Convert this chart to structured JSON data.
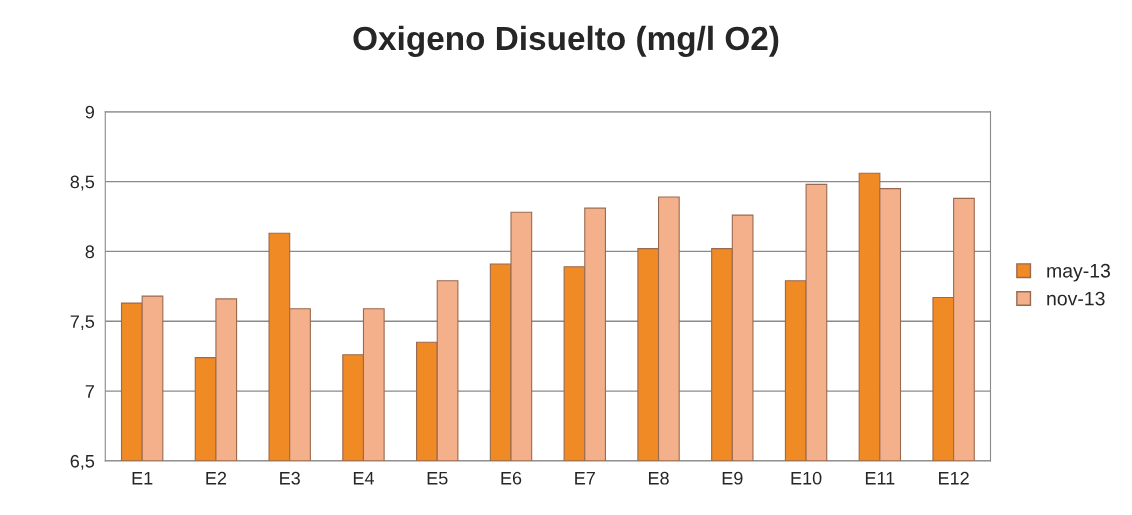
{
  "chart_data": {
    "type": "bar",
    "title": "Oxigeno Disuelto (mg/l O2)",
    "categories": [
      "E1",
      "E2",
      "E3",
      "E4",
      "E5",
      "E6",
      "E7",
      "E8",
      "E9",
      "E10",
      "E11",
      "E12"
    ],
    "series": [
      {
        "name": "may-13",
        "color": "#f08a24",
        "values": [
          7.63,
          7.24,
          8.13,
          7.26,
          7.35,
          7.91,
          7.89,
          8.02,
          8.02,
          7.79,
          8.56,
          7.67
        ]
      },
      {
        "name": "nov-13",
        "color": "#f4b08a",
        "values": [
          7.68,
          7.66,
          7.59,
          7.59,
          7.79,
          8.28,
          8.31,
          8.39,
          8.26,
          8.48,
          8.45,
          8.38
        ]
      }
    ],
    "ylim": [
      6.5,
      9
    ],
    "yticks": [
      {
        "value": 6.5,
        "label": "6,5"
      },
      7,
      {
        "value": 7.5,
        "label": "7,5"
      },
      8,
      {
        "value": 8.5,
        "label": "8,5"
      },
      9
    ],
    "grid": "y",
    "legend": "right"
  }
}
